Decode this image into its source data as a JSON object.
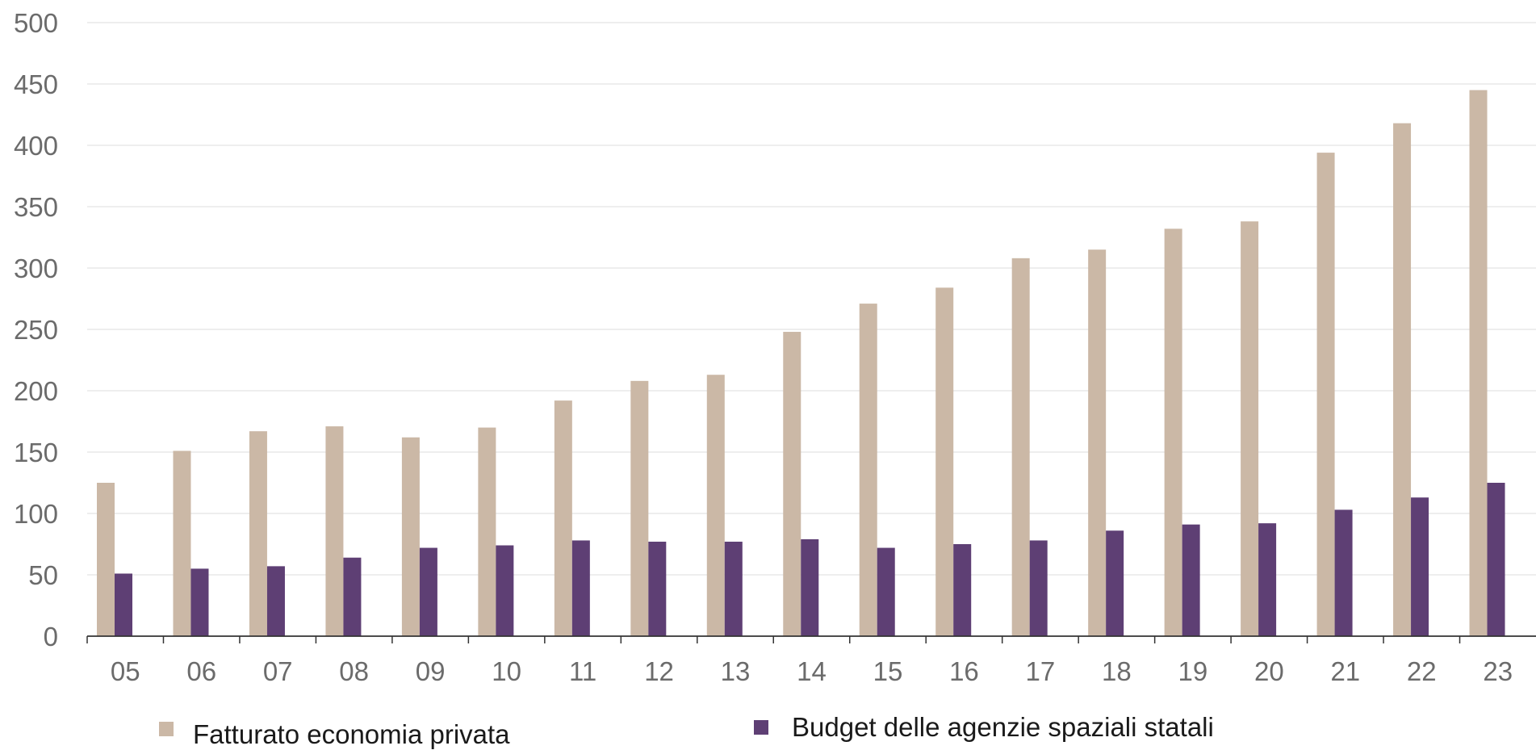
{
  "chart_data": {
    "type": "bar",
    "categories": [
      "05",
      "06",
      "07",
      "08",
      "09",
      "10",
      "11",
      "12",
      "13",
      "14",
      "15",
      "16",
      "17",
      "18",
      "19",
      "20",
      "21",
      "22",
      "23"
    ],
    "series": [
      {
        "name": "Fatturato economia privata",
        "color": "#cbb8a6",
        "values": [
          125,
          151,
          167,
          171,
          162,
          170,
          192,
          208,
          213,
          248,
          271,
          284,
          308,
          315,
          332,
          338,
          394,
          418,
          445
        ]
      },
      {
        "name": "Budget delle agenzie spaziali statali",
        "color": "#5e3f74",
        "values": [
          51,
          55,
          57,
          64,
          72,
          74,
          78,
          77,
          77,
          79,
          72,
          75,
          78,
          86,
          91,
          92,
          103,
          113,
          125
        ]
      }
    ],
    "ylim": [
      0,
      500
    ],
    "yticks": [
      0,
      50,
      100,
      150,
      200,
      250,
      300,
      350,
      400,
      450,
      500
    ],
    "grid": true,
    "legend_position": "bottom",
    "title": "",
    "xlabel": "",
    "ylabel": ""
  }
}
